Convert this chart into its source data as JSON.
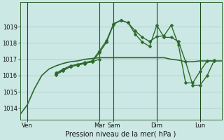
{
  "background_color": "#cce8e4",
  "grid_color": "#aacccc",
  "line_color": "#2d6a2d",
  "xlabel": "Pression niveau de la mer( hPa )",
  "ylim": [
    1013.3,
    1020.5
  ],
  "yticks": [
    1014,
    1015,
    1016,
    1017,
    1018,
    1019
  ],
  "xlim": [
    0,
    168
  ],
  "xtick_labels": [
    "Ven",
    "Mar",
    "Sam",
    "Dim",
    "Lun"
  ],
  "xtick_positions": [
    6,
    66,
    78,
    114,
    150
  ],
  "series": [
    {
      "x": [
        0,
        6,
        12,
        18,
        24,
        30,
        36,
        42,
        48,
        54,
        60,
        66,
        72,
        78,
        84,
        90,
        96,
        102,
        108,
        114,
        120,
        126,
        132,
        138,
        144,
        150,
        156,
        162,
        168
      ],
      "y": [
        1013.6,
        1014.2,
        1015.2,
        1016.0,
        1016.4,
        1016.6,
        1016.75,
        1016.85,
        1016.9,
        1017.0,
        1017.05,
        1017.1,
        1017.1,
        1017.1,
        1017.1,
        1017.1,
        1017.1,
        1017.1,
        1017.1,
        1017.1,
        1017.1,
        1017.0,
        1016.95,
        1016.85,
        1016.85,
        1016.9,
        1016.9,
        1016.9,
        1016.9
      ],
      "marker": null,
      "linewidth": 1.2,
      "zorder": 2
    },
    {
      "x": [
        30,
        36,
        42,
        48,
        54,
        60,
        66,
        72,
        78,
        84,
        90,
        96,
        102,
        108,
        114,
        120,
        126,
        132,
        138,
        144,
        150,
        156,
        162
      ],
      "y": [
        1016.05,
        1016.3,
        1016.55,
        1016.65,
        1016.75,
        1016.85,
        1017.4,
        1018.05,
        1019.15,
        1019.4,
        1019.25,
        1018.55,
        1018.05,
        1017.8,
        1019.1,
        1018.35,
        1018.35,
        1018.1,
        1016.85,
        1015.4,
        1015.4,
        1016.0,
        1016.95
      ],
      "marker": "D",
      "markersize": 2.5,
      "linewidth": 1.0,
      "zorder": 3
    },
    {
      "x": [
        30,
        36,
        42,
        48,
        54,
        60,
        66,
        72,
        78,
        84,
        90,
        96,
        102,
        108,
        114,
        120,
        126,
        132,
        138,
        144,
        150,
        156,
        162
      ],
      "y": [
        1016.15,
        1016.4,
        1016.6,
        1016.7,
        1016.8,
        1016.9,
        1017.5,
        1018.15,
        1019.2,
        1019.4,
        1019.25,
        1018.75,
        1018.35,
        1018.1,
        1018.4,
        1018.45,
        1019.1,
        1017.9,
        1015.55,
        1015.55,
        1016.25,
        1016.9,
        1016.9
      ],
      "marker": "D",
      "markersize": 2.5,
      "linewidth": 1.0,
      "zorder": 3
    },
    {
      "x": [
        30,
        36,
        42,
        48,
        54,
        60,
        66
      ],
      "y": [
        1016.1,
        1016.35,
        1016.55,
        1016.65,
        1016.75,
        1016.85,
        1017.0
      ],
      "marker": "D",
      "markersize": 2.5,
      "linewidth": 1.0,
      "zorder": 3
    }
  ],
  "vlines": [
    6,
    66,
    78,
    114,
    150
  ],
  "vline_color": "#1a4a1a"
}
